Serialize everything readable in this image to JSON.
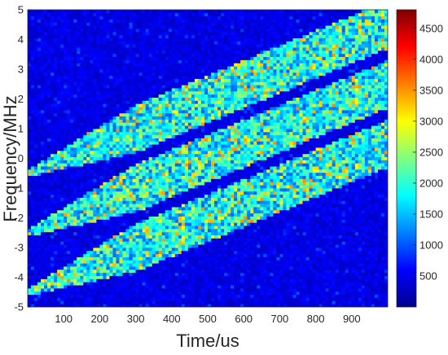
{
  "chart_data": {
    "type": "heatmap",
    "title": "",
    "xlabel": "Time/us",
    "ylabel": "Frequency/MHz",
    "x_ticks": [
      100,
      200,
      300,
      400,
      500,
      600,
      700,
      800,
      900
    ],
    "y_ticks": [
      5,
      4,
      3,
      2,
      1,
      0,
      -1,
      -2,
      -3,
      -4,
      -5
    ],
    "xlim": [
      0,
      1000
    ],
    "ylim": [
      -5,
      5
    ],
    "colorbar": {
      "ticks": [
        500,
        1000,
        1500,
        2000,
        2500,
        3000,
        3500,
        4000,
        4500
      ],
      "range": [
        0,
        4800
      ],
      "colormap": "jet"
    },
    "series": [
      {
        "start_time_us": 0,
        "start_freq_mhz": -0.5,
        "end_time_us": 1000,
        "end_freq_mhz": 4.5,
        "bandwidth_mhz": 1.6
      },
      {
        "start_time_us": 0,
        "start_freq_mhz": -2.5,
        "end_time_us": 1000,
        "end_freq_mhz": 2.5,
        "bandwidth_mhz": 1.6
      },
      {
        "start_time_us": 0,
        "start_freq_mhz": -4.5,
        "end_time_us": 1000,
        "end_freq_mhz": 0.5,
        "bandwidth_mhz": 1.6
      }
    ],
    "typical_values": {
      "background": 300,
      "band": 1800,
      "peak": 3200
    }
  }
}
